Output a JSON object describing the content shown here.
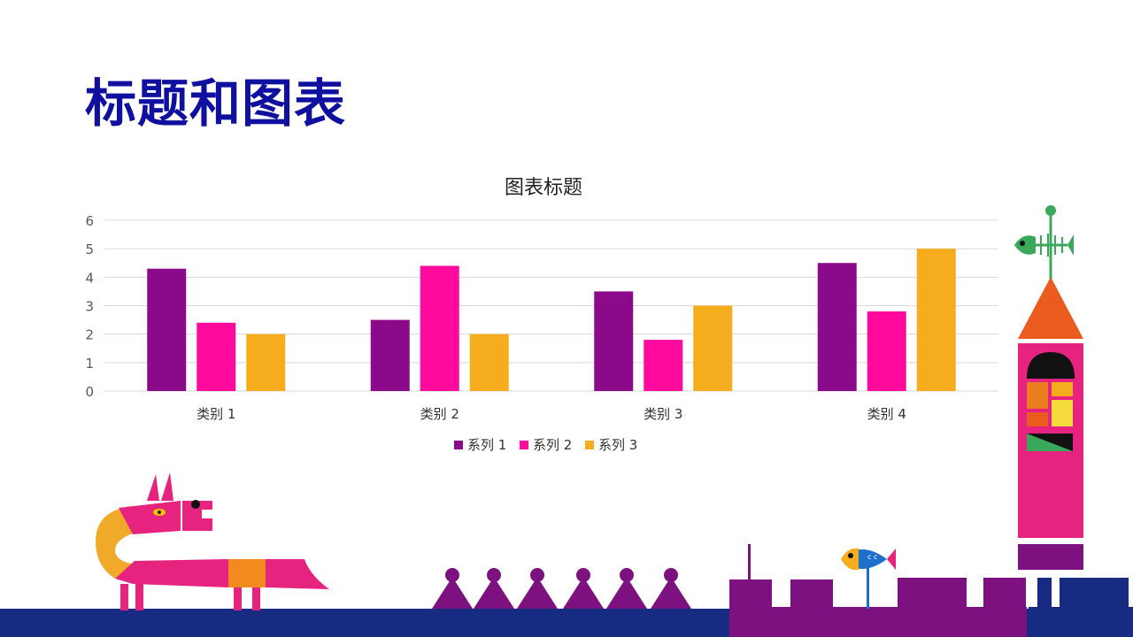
{
  "slide": {
    "title": "标题和图表"
  },
  "colors": {
    "title": "#0f0fa0",
    "series": [
      "#8a0a8a",
      "#ff0a9c",
      "#f5ad1e"
    ],
    "ground": "#172b82",
    "purple": "#7d1180",
    "pink": "#e6247f"
  },
  "chart_data": {
    "type": "bar",
    "title": "图表标题",
    "xlabel": "",
    "ylabel": "",
    "categories": [
      "类别 1",
      "类别 2",
      "类别 3",
      "类别 4"
    ],
    "series": [
      {
        "name": "系列 1",
        "values": [
          4.3,
          2.5,
          3.5,
          4.5
        ]
      },
      {
        "name": "系列 2",
        "values": [
          2.4,
          4.4,
          1.8,
          2.8
        ]
      },
      {
        "name": "系列 3",
        "values": [
          2,
          2,
          3,
          5
        ]
      }
    ],
    "ylim": [
      0,
      6
    ],
    "yticks": [
      "0",
      "1",
      "2",
      "3",
      "4",
      "5",
      "6"
    ],
    "grid": true,
    "legend_position": "bottom"
  },
  "decorations": [
    "dog-illustration",
    "cone-row",
    "castle-illustration",
    "fish-illustration",
    "tower-illustration",
    "fish-skeleton-weathervane",
    "ground-strip"
  ]
}
